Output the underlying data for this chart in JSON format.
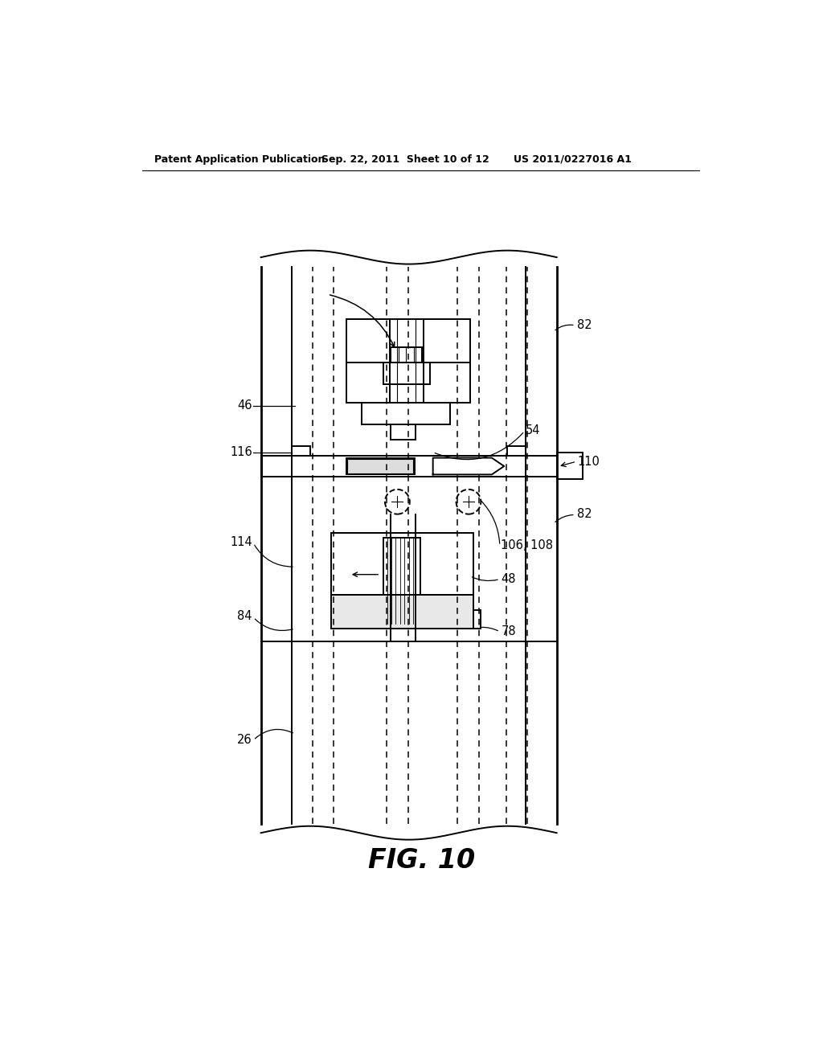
{
  "bg_color": "#ffffff",
  "line_color": "#000000",
  "header_text": "Patent Application Publication",
  "header_date": "Sep. 22, 2011  Sheet 10 of 12",
  "header_patent": "US 2011/0227016 A1",
  "figure_label": "FIG. 10",
  "labels": {
    "82_top": "82",
    "46": "46",
    "54": "54",
    "116": "116",
    "110": "110",
    "82_mid": "82",
    "114": "114",
    "106_108": "106, 108",
    "48": "48",
    "84": "84",
    "78": "78",
    "26": "26"
  }
}
